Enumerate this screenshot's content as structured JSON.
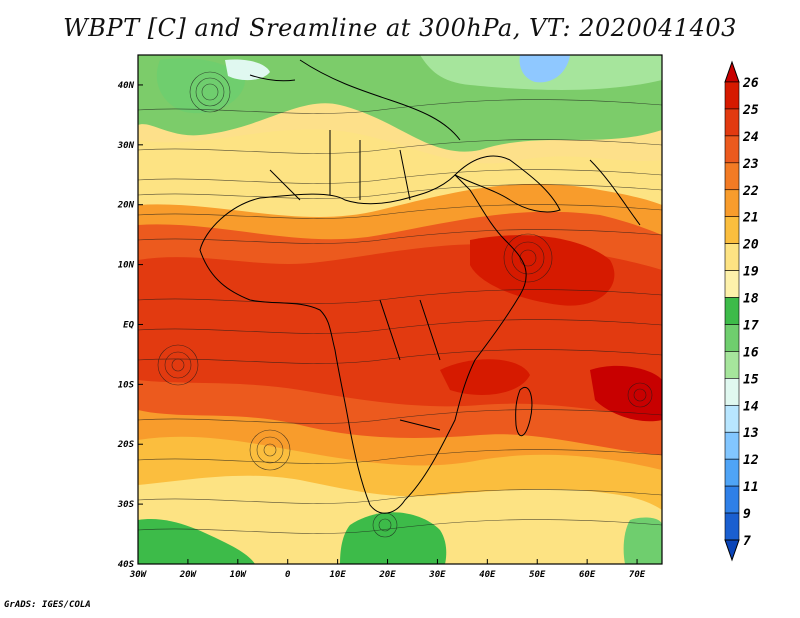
{
  "title": "WBPT [C] and Sreamline at 300hPa, VT: 2020041403",
  "footer": "GrADS: IGES/COLA",
  "map": {
    "lon_range": [
      -30,
      75
    ],
    "lat_range": [
      -40,
      45
    ],
    "x_ticks": [
      "30W",
      "20W",
      "10W",
      "0",
      "10E",
      "20E",
      "30E",
      "40E",
      "50E",
      "60E",
      "70E"
    ],
    "y_ticks": [
      "40N",
      "30N",
      "20N",
      "10N",
      "EQ",
      "10S",
      "20S",
      "30S",
      "40S"
    ]
  },
  "colorbar": {
    "levels": [
      "26",
      "25",
      "24",
      "23",
      "22",
      "21",
      "20",
      "19",
      "18",
      "17",
      "16",
      "15",
      "14",
      "13",
      "12",
      "11",
      "9",
      "7"
    ],
    "colors": [
      "#c80000",
      "#d61a00",
      "#e23a10",
      "#ec5a1e",
      "#f37b24",
      "#f89c2c",
      "#fbbe3e",
      "#fde383",
      "#fdf1ab",
      "#3dbb49",
      "#6fce6e",
      "#a6e59c",
      "#e0f8f0",
      "#b8e6ff",
      "#82c6ff",
      "#4fa4f6",
      "#2f80e8",
      "#1a5fd0",
      "#0b45b8"
    ]
  }
}
